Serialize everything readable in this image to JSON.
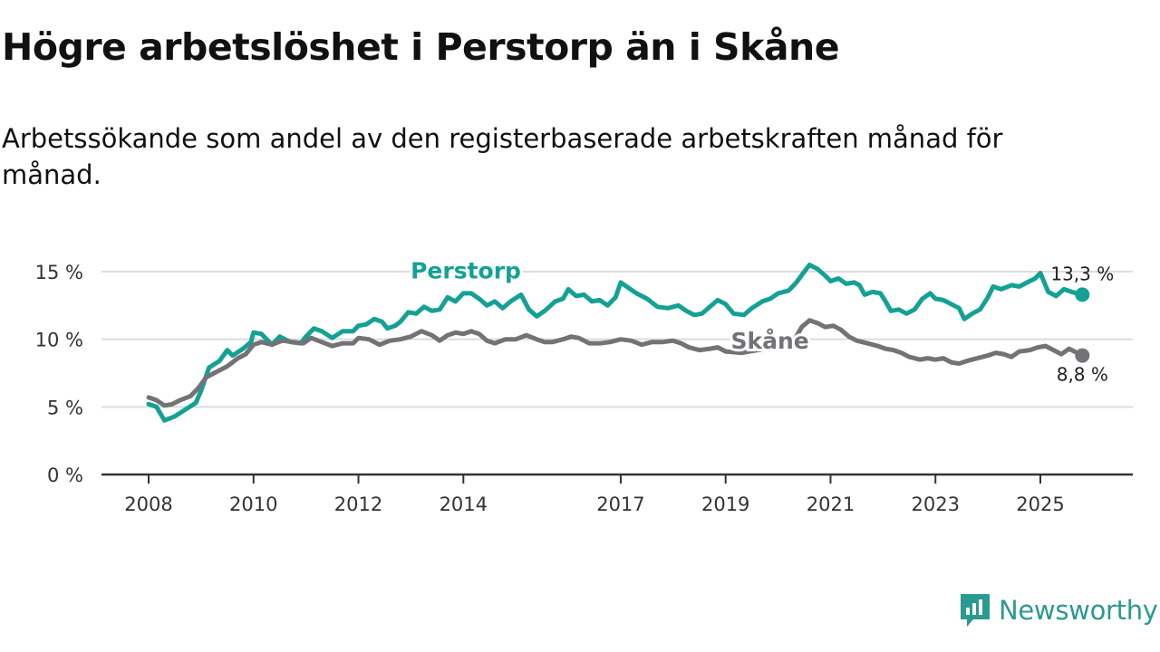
{
  "title": "Högre arbetslöshet i Perstorp än i Skåne",
  "subtitle": "Arbetssökande som andel av den registerbaserade arbetskraften månad för månad.",
  "brand": {
    "name": "Newsworthy",
    "icon": "newsworthy-logo-icon",
    "color": "#2b9a90"
  },
  "chart_data": {
    "type": "line",
    "title": "Högre arbetslöshet i Perstorp än i Skåne",
    "subtitle": "Arbetssökande som andel av den registerbaserade arbetskraften månad för månad.",
    "xlabel": "",
    "ylabel": "",
    "ylim": [
      0,
      16
    ],
    "xlim": [
      2007.6,
      2026.9
    ],
    "grid": true,
    "y_ticks": [
      0,
      5,
      10,
      15
    ],
    "y_tick_labels": [
      "0 %",
      "5 %",
      "10 %",
      "15 %"
    ],
    "x_ticks": [
      2008,
      2010,
      2012,
      2014,
      2017,
      2019,
      2021,
      2023,
      2025
    ],
    "x_tick_labels": [
      "2008",
      "2010",
      "2012",
      "2014",
      "2017",
      "2019",
      "2021",
      "2023",
      "2025"
    ],
    "series": [
      {
        "name": "Perstorp",
        "color": "#14a195",
        "end_label": "13,3 %",
        "points": [
          [
            2008.0,
            5.2
          ],
          [
            2008.15,
            5.0
          ],
          [
            2008.3,
            4.0
          ],
          [
            2008.5,
            4.3
          ],
          [
            2008.7,
            4.8
          ],
          [
            2008.9,
            5.3
          ],
          [
            2009.0,
            6.2
          ],
          [
            2009.15,
            7.9
          ],
          [
            2009.35,
            8.4
          ],
          [
            2009.5,
            9.2
          ],
          [
            2009.6,
            8.8
          ],
          [
            2009.8,
            9.3
          ],
          [
            2009.95,
            9.8
          ],
          [
            2010.0,
            10.5
          ],
          [
            2010.15,
            10.4
          ],
          [
            2010.35,
            9.6
          ],
          [
            2010.5,
            10.2
          ],
          [
            2010.7,
            9.8
          ],
          [
            2010.9,
            9.7
          ],
          [
            2011.0,
            10.2
          ],
          [
            2011.15,
            10.8
          ],
          [
            2011.3,
            10.6
          ],
          [
            2011.5,
            10.1
          ],
          [
            2011.7,
            10.6
          ],
          [
            2011.9,
            10.6
          ],
          [
            2012.0,
            11.0
          ],
          [
            2012.15,
            11.1
          ],
          [
            2012.3,
            11.5
          ],
          [
            2012.45,
            11.3
          ],
          [
            2012.55,
            10.8
          ],
          [
            2012.7,
            11.0
          ],
          [
            2012.8,
            11.3
          ],
          [
            2012.95,
            12.0
          ],
          [
            2013.1,
            11.9
          ],
          [
            2013.25,
            12.4
          ],
          [
            2013.4,
            12.1
          ],
          [
            2013.55,
            12.2
          ],
          [
            2013.7,
            13.1
          ],
          [
            2013.85,
            12.8
          ],
          [
            2014.0,
            13.4
          ],
          [
            2014.15,
            13.4
          ],
          [
            2014.3,
            13.0
          ],
          [
            2014.45,
            12.5
          ],
          [
            2014.6,
            12.8
          ],
          [
            2014.75,
            12.3
          ],
          [
            2014.9,
            12.8
          ],
          [
            2015.1,
            13.3
          ],
          [
            2015.25,
            12.2
          ],
          [
            2015.4,
            11.7
          ],
          [
            2015.55,
            12.1
          ],
          [
            2015.75,
            12.8
          ],
          [
            2015.9,
            13.0
          ],
          [
            2016.0,
            13.7
          ],
          [
            2016.15,
            13.2
          ],
          [
            2016.3,
            13.3
          ],
          [
            2016.45,
            12.8
          ],
          [
            2016.6,
            12.9
          ],
          [
            2016.75,
            12.5
          ],
          [
            2016.9,
            13.1
          ],
          [
            2017.0,
            14.2
          ],
          [
            2017.15,
            13.8
          ],
          [
            2017.3,
            13.4
          ],
          [
            2017.5,
            13.0
          ],
          [
            2017.7,
            12.4
          ],
          [
            2017.9,
            12.3
          ],
          [
            2018.1,
            12.5
          ],
          [
            2018.25,
            12.1
          ],
          [
            2018.4,
            11.8
          ],
          [
            2018.55,
            11.9
          ],
          [
            2018.7,
            12.4
          ],
          [
            2018.85,
            12.9
          ],
          [
            2019.0,
            12.6
          ],
          [
            2019.15,
            11.9
          ],
          [
            2019.35,
            11.8
          ],
          [
            2019.5,
            12.3
          ],
          [
            2019.7,
            12.8
          ],
          [
            2019.85,
            13.0
          ],
          [
            2020.0,
            13.4
          ],
          [
            2020.2,
            13.6
          ],
          [
            2020.35,
            14.2
          ],
          [
            2020.5,
            15.0
          ],
          [
            2020.6,
            15.5
          ],
          [
            2020.75,
            15.2
          ],
          [
            2020.9,
            14.7
          ],
          [
            2021.0,
            14.3
          ],
          [
            2021.15,
            14.5
          ],
          [
            2021.3,
            14.1
          ],
          [
            2021.45,
            14.2
          ],
          [
            2021.55,
            14.0
          ],
          [
            2021.65,
            13.3
          ],
          [
            2021.8,
            13.5
          ],
          [
            2021.95,
            13.4
          ],
          [
            2022.05,
            12.8
          ],
          [
            2022.15,
            12.1
          ],
          [
            2022.3,
            12.2
          ],
          [
            2022.45,
            11.9
          ],
          [
            2022.6,
            12.2
          ],
          [
            2022.75,
            13.0
          ],
          [
            2022.9,
            13.4
          ],
          [
            2023.0,
            13.0
          ],
          [
            2023.15,
            12.9
          ],
          [
            2023.3,
            12.6
          ],
          [
            2023.45,
            12.3
          ],
          [
            2023.55,
            11.5
          ],
          [
            2023.7,
            11.9
          ],
          [
            2023.85,
            12.2
          ],
          [
            2024.0,
            13.1
          ],
          [
            2024.1,
            13.9
          ],
          [
            2024.25,
            13.7
          ],
          [
            2024.45,
            14.0
          ],
          [
            2024.6,
            13.9
          ],
          [
            2024.75,
            14.2
          ],
          [
            2024.9,
            14.5
          ],
          [
            2025.0,
            14.9
          ],
          [
            2025.15,
            13.5
          ],
          [
            2025.3,
            13.2
          ],
          [
            2025.45,
            13.7
          ],
          [
            2025.6,
            13.5
          ],
          [
            2025.8,
            13.3
          ]
        ]
      },
      {
        "name": "Skåne",
        "color": "#727277",
        "end_label": "8,8 %",
        "points": [
          [
            2008.0,
            5.7
          ],
          [
            2008.15,
            5.5
          ],
          [
            2008.3,
            5.1
          ],
          [
            2008.45,
            5.2
          ],
          [
            2008.6,
            5.5
          ],
          [
            2008.8,
            5.8
          ],
          [
            2008.95,
            6.4
          ],
          [
            2009.1,
            7.2
          ],
          [
            2009.3,
            7.6
          ],
          [
            2009.5,
            8.0
          ],
          [
            2009.7,
            8.6
          ],
          [
            2009.85,
            8.9
          ],
          [
            2010.0,
            9.6
          ],
          [
            2010.15,
            9.8
          ],
          [
            2010.35,
            9.6
          ],
          [
            2010.55,
            9.9
          ],
          [
            2010.75,
            9.8
          ],
          [
            2010.95,
            9.7
          ],
          [
            2011.1,
            10.1
          ],
          [
            2011.3,
            9.8
          ],
          [
            2011.5,
            9.5
          ],
          [
            2011.7,
            9.7
          ],
          [
            2011.9,
            9.7
          ],
          [
            2012.0,
            10.1
          ],
          [
            2012.2,
            10.0
          ],
          [
            2012.4,
            9.6
          ],
          [
            2012.6,
            9.9
          ],
          [
            2012.8,
            10.0
          ],
          [
            2013.0,
            10.2
          ],
          [
            2013.2,
            10.6
          ],
          [
            2013.4,
            10.3
          ],
          [
            2013.55,
            9.9
          ],
          [
            2013.7,
            10.3
          ],
          [
            2013.85,
            10.5
          ],
          [
            2014.0,
            10.4
          ],
          [
            2014.15,
            10.6
          ],
          [
            2014.3,
            10.4
          ],
          [
            2014.45,
            9.9
          ],
          [
            2014.6,
            9.7
          ],
          [
            2014.8,
            10.0
          ],
          [
            2015.0,
            10.0
          ],
          [
            2015.2,
            10.3
          ],
          [
            2015.4,
            10.0
          ],
          [
            2015.55,
            9.8
          ],
          [
            2015.7,
            9.8
          ],
          [
            2015.9,
            10.0
          ],
          [
            2016.05,
            10.2
          ],
          [
            2016.2,
            10.1
          ],
          [
            2016.4,
            9.7
          ],
          [
            2016.6,
            9.7
          ],
          [
            2016.8,
            9.8
          ],
          [
            2017.0,
            10.0
          ],
          [
            2017.2,
            9.9
          ],
          [
            2017.4,
            9.6
          ],
          [
            2017.6,
            9.8
          ],
          [
            2017.8,
            9.8
          ],
          [
            2018.0,
            9.9
          ],
          [
            2018.15,
            9.7
          ],
          [
            2018.3,
            9.4
          ],
          [
            2018.5,
            9.2
          ],
          [
            2018.7,
            9.3
          ],
          [
            2018.85,
            9.4
          ],
          [
            2019.0,
            9.1
          ],
          [
            2019.3,
            9.0
          ],
          [
            2019.6,
            9.2
          ],
          [
            2019.9,
            9.4
          ],
          [
            2020.1,
            9.6
          ],
          [
            2020.3,
            9.9
          ],
          [
            2020.45,
            10.9
          ],
          [
            2020.6,
            11.4
          ],
          [
            2020.75,
            11.2
          ],
          [
            2020.9,
            10.9
          ],
          [
            2021.05,
            11.0
          ],
          [
            2021.2,
            10.7
          ],
          [
            2021.35,
            10.2
          ],
          [
            2021.5,
            9.9
          ],
          [
            2021.7,
            9.7
          ],
          [
            2021.9,
            9.5
          ],
          [
            2022.05,
            9.3
          ],
          [
            2022.2,
            9.2
          ],
          [
            2022.35,
            9.0
          ],
          [
            2022.5,
            8.7
          ],
          [
            2022.7,
            8.5
          ],
          [
            2022.85,
            8.6
          ],
          [
            2023.0,
            8.5
          ],
          [
            2023.15,
            8.6
          ],
          [
            2023.3,
            8.3
          ],
          [
            2023.45,
            8.2
          ],
          [
            2023.6,
            8.4
          ],
          [
            2023.8,
            8.6
          ],
          [
            2024.0,
            8.8
          ],
          [
            2024.15,
            9.0
          ],
          [
            2024.3,
            8.9
          ],
          [
            2024.45,
            8.7
          ],
          [
            2024.6,
            9.1
          ],
          [
            2024.8,
            9.2
          ],
          [
            2024.95,
            9.4
          ],
          [
            2025.1,
            9.5
          ],
          [
            2025.25,
            9.2
          ],
          [
            2025.4,
            8.9
          ],
          [
            2025.55,
            9.3
          ],
          [
            2025.7,
            9.0
          ],
          [
            2025.8,
            8.8
          ]
        ]
      }
    ]
  }
}
